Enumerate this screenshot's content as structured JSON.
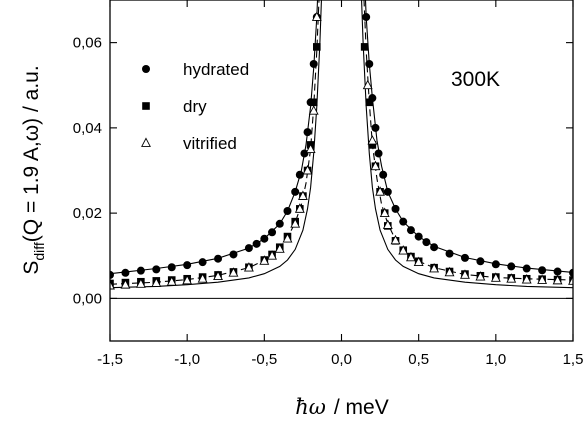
{
  "chart_data": {
    "type": "scatter",
    "annotation": "300K",
    "xlabel": {
      "symbol": "ħω",
      "text": "/  meV"
    },
    "ylabel": {
      "main": "S",
      "sub": "diff",
      "rest": "(Q = 1.9 A,ω)  /  a.u."
    },
    "xlim": [
      -1.5,
      1.5
    ],
    "ylim": [
      -0.01,
      0.07
    ],
    "x_ticks": [
      -1.5,
      -1.0,
      -0.5,
      0.0,
      0.5,
      1.0,
      1.5
    ],
    "x_tick_labels": [
      "-1,5",
      "-1,0",
      "-0,5",
      "0,0",
      "0,5",
      "1,0",
      "1,5"
    ],
    "y_ticks": [
      0.0,
      0.02,
      0.04,
      0.06
    ],
    "y_tick_labels": [
      "0,00",
      "0,02",
      "0,04",
      "0,06"
    ],
    "legend_position": "top-left",
    "series": [
      {
        "name": "hydrated",
        "marker": "circle-filled",
        "points": [
          [
            -1.5,
            0.0055
          ],
          [
            -1.4,
            0.006
          ],
          [
            -1.3,
            0.0065
          ],
          [
            -1.2,
            0.0068
          ],
          [
            -1.1,
            0.0073
          ],
          [
            -1.0,
            0.0078
          ],
          [
            -0.9,
            0.0085
          ],
          [
            -0.8,
            0.0093
          ],
          [
            -0.7,
            0.0103
          ],
          [
            -0.6,
            0.0118
          ],
          [
            -0.55,
            0.0128
          ],
          [
            -0.5,
            0.014
          ],
          [
            -0.45,
            0.0155
          ],
          [
            -0.4,
            0.0175
          ],
          [
            -0.35,
            0.0205
          ],
          [
            -0.3,
            0.025
          ],
          [
            -0.27,
            0.029
          ],
          [
            -0.24,
            0.034
          ],
          [
            -0.22,
            0.039
          ],
          [
            -0.2,
            0.046
          ],
          [
            -0.18,
            0.055
          ],
          [
            -0.16,
            0.066
          ],
          [
            0.16,
            0.066
          ],
          [
            0.18,
            0.055
          ],
          [
            0.2,
            0.047
          ],
          [
            0.22,
            0.04
          ],
          [
            0.24,
            0.034
          ],
          [
            0.27,
            0.029
          ],
          [
            0.3,
            0.025
          ],
          [
            0.35,
            0.021
          ],
          [
            0.4,
            0.018
          ],
          [
            0.45,
            0.016
          ],
          [
            0.5,
            0.0145
          ],
          [
            0.55,
            0.0132
          ],
          [
            0.6,
            0.012
          ],
          [
            0.7,
            0.0105
          ],
          [
            0.8,
            0.0095
          ],
          [
            0.9,
            0.0087
          ],
          [
            1.0,
            0.008
          ],
          [
            1.1,
            0.0075
          ],
          [
            1.2,
            0.007
          ],
          [
            1.3,
            0.0066
          ],
          [
            1.4,
            0.0063
          ],
          [
            1.5,
            0.006
          ]
        ]
      },
      {
        "name": "dry",
        "marker": "square-filled",
        "points": [
          [
            -1.5,
            0.0035
          ],
          [
            -1.4,
            0.0037
          ],
          [
            -1.3,
            0.0039
          ],
          [
            -1.2,
            0.0041
          ],
          [
            -1.1,
            0.0043
          ],
          [
            -1.0,
            0.0046
          ],
          [
            -0.9,
            0.005
          ],
          [
            -0.8,
            0.0055
          ],
          [
            -0.7,
            0.0062
          ],
          [
            -0.6,
            0.0073
          ],
          [
            -0.5,
            0.009
          ],
          [
            -0.45,
            0.0103
          ],
          [
            -0.4,
            0.012
          ],
          [
            -0.35,
            0.0145
          ],
          [
            -0.3,
            0.018
          ],
          [
            -0.27,
            0.021
          ],
          [
            -0.25,
            0.024
          ],
          [
            -0.22,
            0.03
          ],
          [
            -0.2,
            0.036
          ],
          [
            -0.18,
            0.046
          ],
          [
            -0.16,
            0.059
          ],
          [
            0.15,
            0.059
          ],
          [
            0.18,
            0.046
          ],
          [
            0.2,
            0.036
          ],
          [
            0.22,
            0.031
          ],
          [
            0.25,
            0.025
          ],
          [
            0.28,
            0.02
          ],
          [
            0.3,
            0.017
          ],
          [
            0.35,
            0.0135
          ],
          [
            0.4,
            0.0113
          ],
          [
            0.45,
            0.0098
          ],
          [
            0.5,
            0.0087
          ],
          [
            0.6,
            0.0072
          ],
          [
            0.7,
            0.0063
          ],
          [
            0.8,
            0.0057
          ],
          [
            0.9,
            0.0053
          ],
          [
            1.0,
            0.005
          ],
          [
            1.1,
            0.0048
          ],
          [
            1.2,
            0.0046
          ],
          [
            1.3,
            0.0045
          ],
          [
            1.4,
            0.0044
          ],
          [
            1.5,
            0.0043
          ]
        ]
      },
      {
        "name": "vitrified",
        "marker": "triangle-open",
        "points": [
          [
            -1.5,
            0.003
          ],
          [
            -1.4,
            0.0032
          ],
          [
            -1.3,
            0.0034
          ],
          [
            -1.2,
            0.0036
          ],
          [
            -1.1,
            0.0039
          ],
          [
            -1.0,
            0.0042
          ],
          [
            -0.9,
            0.0046
          ],
          [
            -0.8,
            0.0052
          ],
          [
            -0.7,
            0.006
          ],
          [
            -0.6,
            0.0072
          ],
          [
            -0.5,
            0.0088
          ],
          [
            -0.45,
            0.01
          ],
          [
            -0.4,
            0.0116
          ],
          [
            -0.35,
            0.014
          ],
          [
            -0.3,
            0.0175
          ],
          [
            -0.27,
            0.021
          ],
          [
            -0.25,
            0.024
          ],
          [
            -0.22,
            0.03
          ],
          [
            -0.2,
            0.035
          ],
          [
            -0.18,
            0.044
          ],
          [
            -0.16,
            0.066
          ],
          [
            0.17,
            0.05
          ],
          [
            0.2,
            0.037
          ],
          [
            0.22,
            0.031
          ],
          [
            0.25,
            0.025
          ],
          [
            0.28,
            0.02
          ],
          [
            0.3,
            0.0172
          ],
          [
            0.35,
            0.0136
          ],
          [
            0.4,
            0.0112
          ],
          [
            0.45,
            0.0096
          ],
          [
            0.5,
            0.0085
          ],
          [
            0.6,
            0.007
          ],
          [
            0.7,
            0.0061
          ],
          [
            0.8,
            0.0055
          ],
          [
            0.9,
            0.0051
          ],
          [
            1.0,
            0.0048
          ],
          [
            1.1,
            0.0046
          ],
          [
            1.2,
            0.0044
          ],
          [
            1.3,
            0.0043
          ],
          [
            1.4,
            0.0042
          ],
          [
            1.5,
            0.0041
          ]
        ]
      }
    ],
    "curves": [
      {
        "style": "solid",
        "points": [
          [
            -1.5,
            0.0058
          ],
          [
            -1.2,
            0.007
          ],
          [
            -1.0,
            0.008
          ],
          [
            -0.8,
            0.0094
          ],
          [
            -0.6,
            0.0118
          ],
          [
            -0.5,
            0.014
          ],
          [
            -0.4,
            0.0175
          ],
          [
            -0.35,
            0.0205
          ],
          [
            -0.3,
            0.025
          ],
          [
            -0.26,
            0.03
          ],
          [
            -0.23,
            0.036
          ],
          [
            -0.2,
            0.045
          ],
          [
            -0.18,
            0.054
          ],
          [
            -0.16,
            0.066
          ],
          [
            -0.15,
            0.075
          ],
          [
            0.15,
            0.075
          ],
          [
            0.16,
            0.066
          ],
          [
            0.18,
            0.055
          ],
          [
            0.2,
            0.047
          ],
          [
            0.23,
            0.037
          ],
          [
            0.26,
            0.031
          ],
          [
            0.3,
            0.025
          ],
          [
            0.35,
            0.021
          ],
          [
            0.4,
            0.018
          ],
          [
            0.5,
            0.0145
          ],
          [
            0.6,
            0.0122
          ],
          [
            0.8,
            0.0096
          ],
          [
            1.0,
            0.0081
          ],
          [
            1.2,
            0.0071
          ],
          [
            1.5,
            0.0061
          ]
        ]
      },
      {
        "style": "dashed",
        "points": [
          [
            -1.5,
            0.0033
          ],
          [
            -1.2,
            0.0038
          ],
          [
            -1.0,
            0.0044
          ],
          [
            -0.8,
            0.0054
          ],
          [
            -0.6,
            0.0072
          ],
          [
            -0.5,
            0.0089
          ],
          [
            -0.4,
            0.0118
          ],
          [
            -0.35,
            0.0142
          ],
          [
            -0.3,
            0.0178
          ],
          [
            -0.26,
            0.022
          ],
          [
            -0.23,
            0.027
          ],
          [
            -0.2,
            0.035
          ],
          [
            -0.18,
            0.045
          ],
          [
            -0.16,
            0.058
          ],
          [
            -0.14,
            0.075
          ],
          [
            0.14,
            0.075
          ],
          [
            0.16,
            0.058
          ],
          [
            0.18,
            0.046
          ],
          [
            0.2,
            0.036
          ],
          [
            0.23,
            0.028
          ],
          [
            0.26,
            0.022
          ],
          [
            0.3,
            0.0175
          ],
          [
            0.35,
            0.0138
          ],
          [
            0.4,
            0.0113
          ],
          [
            0.5,
            0.0087
          ],
          [
            0.6,
            0.0072
          ],
          [
            0.8,
            0.0056
          ],
          [
            1.0,
            0.0049
          ],
          [
            1.2,
            0.0046
          ],
          [
            1.5,
            0.0043
          ]
        ]
      },
      {
        "style": "solid",
        "points": [
          [
            -1.5,
            0.0025
          ],
          [
            -1.2,
            0.0028
          ],
          [
            -1.0,
            0.0032
          ],
          [
            -0.8,
            0.0038
          ],
          [
            -0.6,
            0.0048
          ],
          [
            -0.5,
            0.0058
          ],
          [
            -0.4,
            0.0075
          ],
          [
            -0.35,
            0.009
          ],
          [
            -0.3,
            0.0115
          ],
          [
            -0.25,
            0.016
          ],
          [
            -0.22,
            0.021
          ],
          [
            -0.2,
            0.026
          ],
          [
            -0.18,
            0.034
          ],
          [
            -0.16,
            0.045
          ],
          [
            -0.14,
            0.06
          ],
          [
            -0.125,
            0.075
          ],
          [
            0.125,
            0.075
          ],
          [
            0.14,
            0.06
          ],
          [
            0.16,
            0.045
          ],
          [
            0.18,
            0.034
          ],
          [
            0.2,
            0.026
          ],
          [
            0.22,
            0.021
          ],
          [
            0.25,
            0.016
          ],
          [
            0.3,
            0.0115
          ],
          [
            0.35,
            0.009
          ],
          [
            0.4,
            0.0075
          ],
          [
            0.5,
            0.0058
          ],
          [
            0.6,
            0.0048
          ],
          [
            0.8,
            0.0038
          ],
          [
            1.0,
            0.0032
          ],
          [
            1.2,
            0.0028
          ],
          [
            1.5,
            0.0025
          ]
        ]
      }
    ]
  }
}
